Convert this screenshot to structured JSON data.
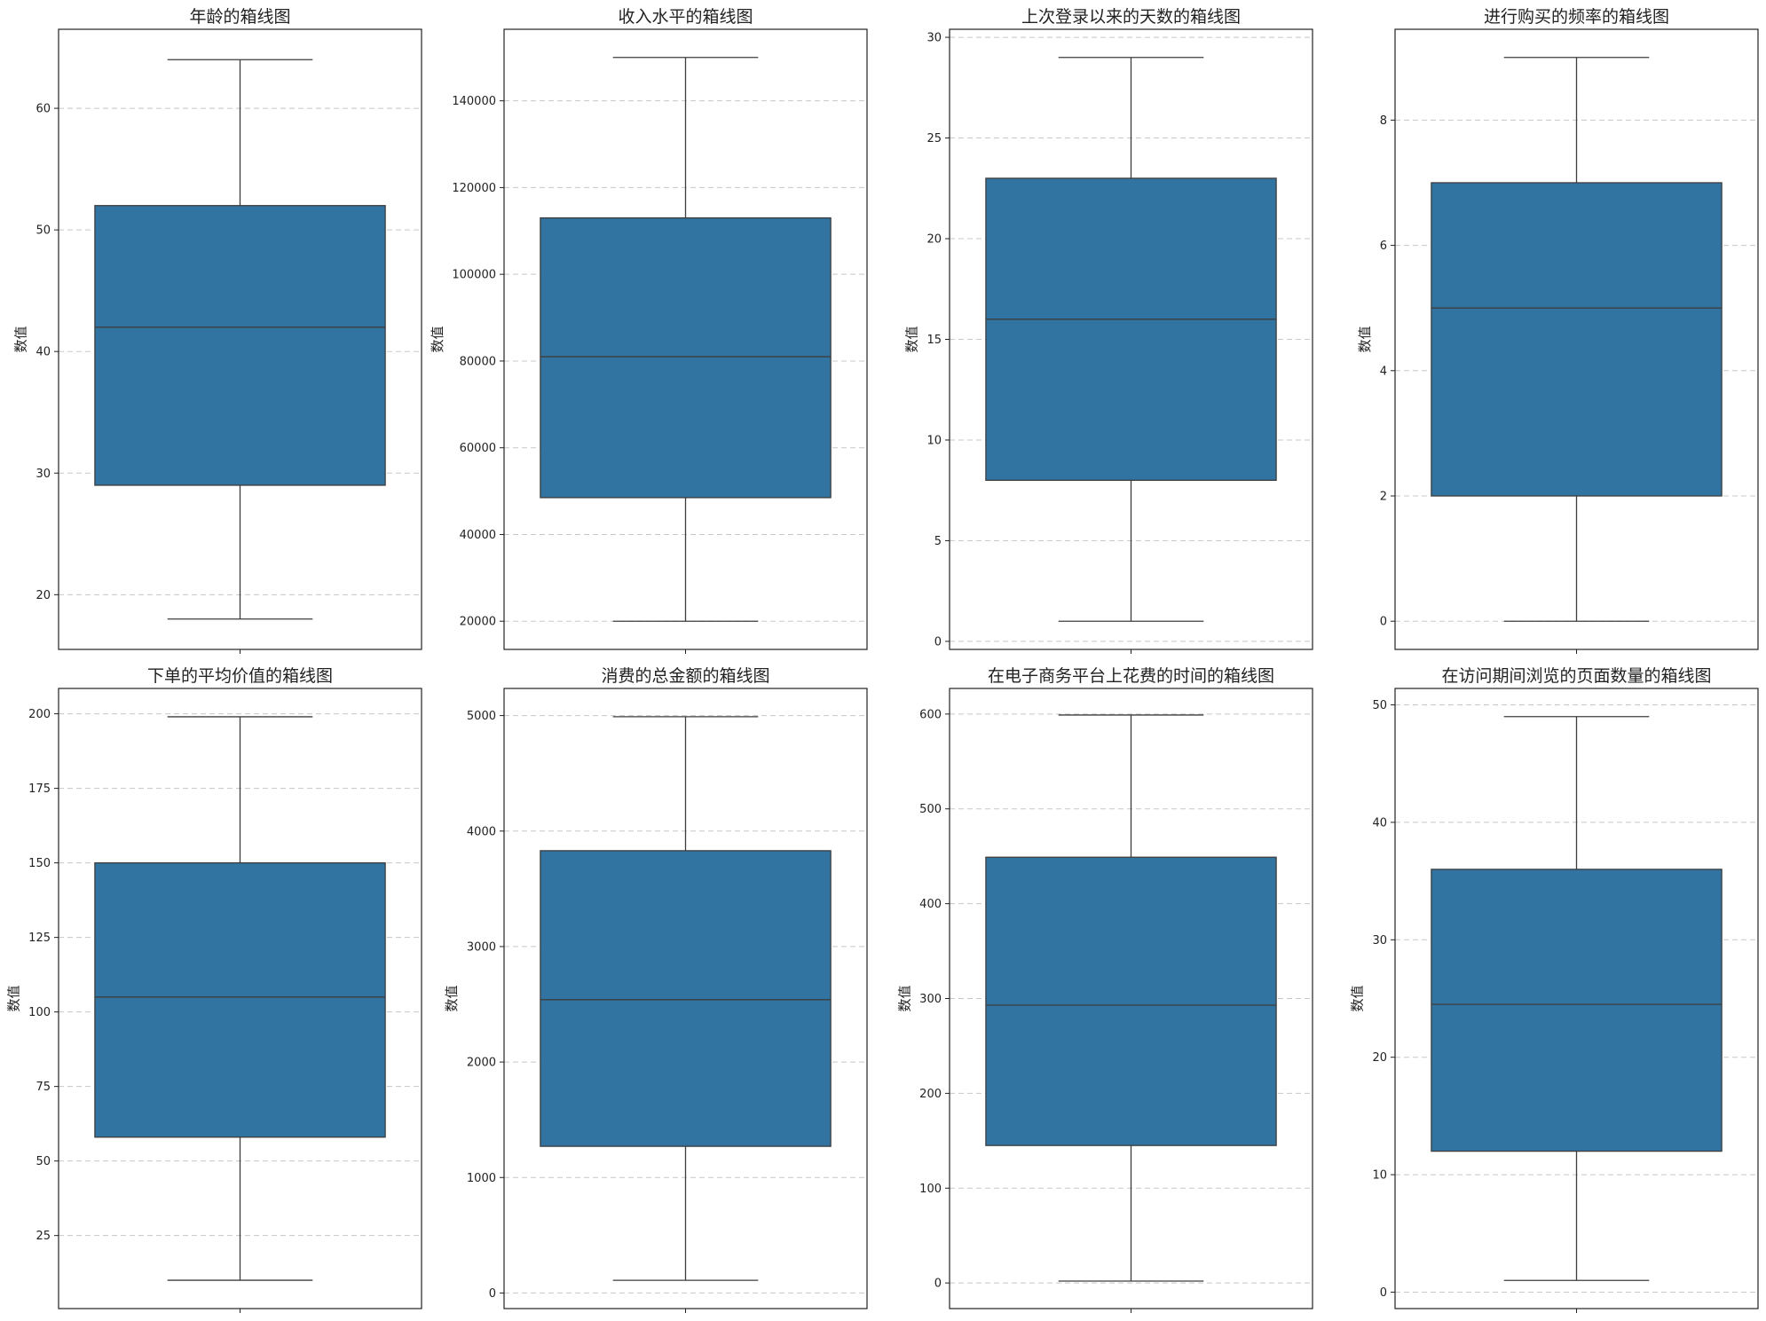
{
  "chart_data": [
    {
      "type": "box",
      "title": "年龄的箱线图",
      "xlabel": "",
      "ylabel": "数值",
      "ylim": [
        15.5,
        66.5
      ],
      "yticks": [
        20,
        30,
        40,
        50,
        60
      ],
      "grid": true,
      "color": "#3274a1",
      "stats": {
        "min": 18,
        "q1": 29,
        "median": 42,
        "q3": 52,
        "max": 64
      }
    },
    {
      "type": "box",
      "title": "收入水平的箱线图",
      "xlabel": "",
      "ylabel": "数值",
      "ylim": [
        13500,
        156500
      ],
      "yticks": [
        20000,
        40000,
        60000,
        80000,
        100000,
        120000,
        140000
      ],
      "grid": true,
      "color": "#3274a1",
      "stats": {
        "min": 20000,
        "q1": 48500,
        "median": 81000,
        "q3": 113000,
        "max": 150000
      }
    },
    {
      "type": "box",
      "title": "上次登录以来的天数的箱线图",
      "xlabel": "",
      "ylabel": "数值",
      "ylim": [
        -0.4,
        30.4
      ],
      "yticks": [
        0,
        5,
        10,
        15,
        20,
        25,
        30
      ],
      "grid": true,
      "color": "#3274a1",
      "stats": {
        "min": 1,
        "q1": 8,
        "median": 16,
        "q3": 23,
        "max": 29
      }
    },
    {
      "type": "box",
      "title": "进行购买的频率的箱线图",
      "xlabel": "",
      "ylabel": "数值",
      "ylim": [
        -0.45,
        9.45
      ],
      "yticks": [
        0,
        2,
        4,
        6,
        8
      ],
      "grid": true,
      "color": "#3274a1",
      "stats": {
        "min": 0,
        "q1": 2,
        "median": 5,
        "q3": 7,
        "max": 9
      }
    },
    {
      "type": "box",
      "title": "下单的平均价值的箱线图",
      "xlabel": "",
      "ylabel": "数值",
      "ylim": [
        0.5,
        208.5
      ],
      "yticks": [
        25,
        50,
        75,
        100,
        125,
        150,
        175,
        200
      ],
      "grid": true,
      "color": "#3274a1",
      "stats": {
        "min": 10,
        "q1": 58,
        "median": 105,
        "q3": 150,
        "max": 199
      }
    },
    {
      "type": "box",
      "title": "消费的总金额的箱线图",
      "xlabel": "",
      "ylabel": "数值",
      "ylim": [
        -135,
        5235
      ],
      "yticks": [
        0,
        1000,
        2000,
        3000,
        4000,
        5000
      ],
      "grid": true,
      "color": "#3274a1",
      "stats": {
        "min": 110,
        "q1": 1270,
        "median": 2540,
        "q3": 3830,
        "max": 4990
      }
    },
    {
      "type": "box",
      "title": "在电子商务平台上花费的时间的箱线图",
      "xlabel": "",
      "ylabel": "数值",
      "ylim": [
        -27,
        627
      ],
      "yticks": [
        0,
        100,
        200,
        300,
        400,
        500,
        600
      ],
      "grid": true,
      "color": "#3274a1",
      "stats": {
        "min": 2,
        "q1": 145,
        "median": 293,
        "q3": 449,
        "max": 599
      }
    },
    {
      "type": "box",
      "title": "在访问期间浏览的页面数量的箱线图",
      "xlabel": "",
      "ylabel": "数值",
      "ylim": [
        -1.4,
        51.4
      ],
      "yticks": [
        0,
        10,
        20,
        30,
        40,
        50
      ],
      "grid": true,
      "color": "#3274a1",
      "stats": {
        "min": 1,
        "q1": 12,
        "median": 24.5,
        "q3": 36,
        "max": 49
      }
    }
  ]
}
